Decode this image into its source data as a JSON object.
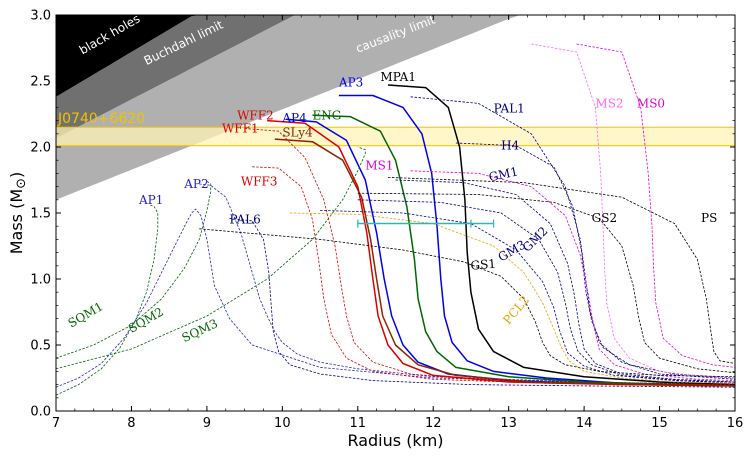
{
  "chart_data": {
    "type": "line",
    "title": "",
    "xlabel": "Radius (km)",
    "ylabel": "Mass (M",
    "ylabel_symbol": "⊙",
    "ylabel_close": ")",
    "xlim": [
      7,
      16
    ],
    "ylim": [
      0.0,
      3.0
    ],
    "xticks": [
      "7",
      "8",
      "9",
      "10",
      "11",
      "12",
      "13",
      "14",
      "15",
      "16"
    ],
    "yticks": [
      "0.0",
      "0.5",
      "1.0",
      "1.5",
      "2.0",
      "2.5",
      "3.0"
    ],
    "regions": [
      {
        "name": "black holes",
        "color": "#000000"
      },
      {
        "name": "Buchdahl limit",
        "color": "#707070"
      },
      {
        "name": "causality limit",
        "color": "#b0b0b0"
      }
    ],
    "band": {
      "name": "J0740+6620",
      "mass_range": [
        2.01,
        2.15
      ],
      "color": "#fff3b8",
      "edge": "#f2c200",
      "label_color": "#f2c200"
    },
    "measurement": {
      "mass": 1.42,
      "radius_range": [
        11.0,
        12.8
      ],
      "color": "#22bbbb"
    },
    "series": [
      {
        "name": "AP1",
        "color": "#2222cc",
        "style": "dashed",
        "width": 0.8,
        "label_at": [
          8.1,
          1.57
        ],
        "x": [
          7.0,
          7.3,
          7.6,
          7.9,
          8.2,
          8.4,
          8.6,
          8.75,
          8.8,
          8.85,
          8.92,
          9.0,
          9.1,
          9.3,
          9.6,
          10.5,
          12,
          14,
          16
        ],
        "y": [
          0.18,
          0.25,
          0.36,
          0.55,
          0.82,
          1.05,
          1.28,
          1.45,
          1.5,
          1.53,
          1.48,
          1.3,
          0.95,
          0.7,
          0.5,
          0.33,
          0.25,
          0.22,
          0.2
        ]
      },
      {
        "name": "AP2",
        "color": "#2222cc",
        "style": "dashed",
        "width": 0.8,
        "label_at": [
          8.7,
          1.69
        ],
        "x": [
          8.9,
          9.05,
          9.25,
          9.45,
          9.6,
          9.7,
          9.8,
          9.9,
          10.0,
          10.2,
          10.5,
          11,
          12,
          14,
          16
        ],
        "y": [
          1.72,
          1.71,
          1.62,
          1.35,
          1.05,
          0.85,
          0.72,
          0.6,
          0.52,
          0.43,
          0.37,
          0.32,
          0.26,
          0.22,
          0.2
        ]
      },
      {
        "name": "AP3",
        "color": "#0000ee",
        "style": "solid",
        "width": 1.5,
        "label_at": [
          10.75,
          2.46
        ],
        "x": [
          10.75,
          11.2,
          11.6,
          11.85,
          11.98,
          12.05,
          12.1,
          12.15,
          12.25,
          12.45,
          12.8,
          13.5,
          14.5,
          16
        ],
        "y": [
          2.39,
          2.39,
          2.3,
          2.1,
          1.8,
          1.4,
          1.0,
          0.72,
          0.52,
          0.38,
          0.3,
          0.25,
          0.21,
          0.19
        ]
      },
      {
        "name": "AP4",
        "color": "#0000ee",
        "style": "solid",
        "width": 1.5,
        "label_at": [
          10.0,
          2.19
        ],
        "x": [
          10.05,
          10.45,
          10.85,
          11.1,
          11.25,
          11.35,
          11.45,
          11.6,
          11.8,
          12.2,
          13,
          14,
          16
        ],
        "y": [
          2.21,
          2.19,
          2.05,
          1.75,
          1.35,
          1.0,
          0.72,
          0.5,
          0.37,
          0.28,
          0.23,
          0.21,
          0.19
        ]
      },
      {
        "name": "ENG",
        "color": "#006600",
        "style": "solid",
        "width": 1.5,
        "label_at": [
          10.4,
          2.21
        ],
        "x": [
          10.4,
          10.9,
          11.3,
          11.5,
          11.65,
          11.75,
          11.8,
          11.9,
          12.05,
          12.3,
          13,
          14,
          16
        ],
        "y": [
          2.24,
          2.23,
          2.12,
          1.9,
          1.55,
          1.15,
          0.85,
          0.6,
          0.45,
          0.33,
          0.26,
          0.22,
          0.19
        ]
      },
      {
        "name": "MPA1",
        "color": "#000000",
        "style": "solid",
        "width": 1.5,
        "label_at": [
          11.3,
          2.5
        ],
        "x": [
          11.4,
          11.9,
          12.2,
          12.35,
          12.42,
          12.45,
          12.5,
          12.6,
          12.8,
          13.2,
          14,
          15,
          16
        ],
        "y": [
          2.47,
          2.45,
          2.3,
          2.0,
          1.6,
          1.2,
          0.9,
          0.62,
          0.45,
          0.33,
          0.26,
          0.22,
          0.2
        ]
      },
      {
        "name": "WFF2",
        "color": "#dd0000",
        "style": "solid",
        "width": 1.5,
        "label_at": [
          9.4,
          2.21
        ],
        "x": [
          9.8,
          10.3,
          10.75,
          11.0,
          11.12,
          11.2,
          11.27,
          11.4,
          11.6,
          12,
          13,
          14.5,
          16
        ],
        "y": [
          2.2,
          2.18,
          2.0,
          1.7,
          1.35,
          1.0,
          0.72,
          0.5,
          0.36,
          0.27,
          0.22,
          0.2,
          0.19
        ]
      },
      {
        "name": "WFF1",
        "color": "#dd0000",
        "style": "dashed",
        "width": 0.8,
        "label_at": [
          9.2,
          2.11
        ],
        "x": [
          9.5,
          9.95,
          10.3,
          10.55,
          10.7,
          10.78,
          10.85,
          10.95,
          11.2,
          11.7,
          12.7,
          14,
          16
        ],
        "y": [
          2.14,
          2.12,
          1.92,
          1.6,
          1.25,
          0.95,
          0.72,
          0.52,
          0.37,
          0.28,
          0.23,
          0.21,
          0.2
        ]
      },
      {
        "name": "WFF3",
        "color": "#dd0000",
        "style": "dashed",
        "width": 0.8,
        "label_at": [
          9.45,
          1.71
        ],
        "x": [
          9.6,
          9.95,
          10.25,
          10.4,
          10.48,
          10.55,
          10.65,
          10.85,
          11.2,
          12,
          13.5,
          16
        ],
        "y": [
          1.85,
          1.84,
          1.7,
          1.45,
          1.15,
          0.85,
          0.58,
          0.4,
          0.3,
          0.24,
          0.21,
          0.19
        ]
      },
      {
        "name": "SLy4",
        "color": "#8b2500",
        "style": "solid",
        "width": 1.5,
        "label_at": [
          10.0,
          2.08
        ],
        "x": [
          9.9,
          10.4,
          10.8,
          11.05,
          11.17,
          11.25,
          11.33,
          11.5,
          11.8,
          12.3,
          13.3,
          14.8,
          16
        ],
        "y": [
          2.06,
          2.04,
          1.9,
          1.62,
          1.3,
          1.0,
          0.72,
          0.5,
          0.35,
          0.27,
          0.22,
          0.2,
          0.19
        ]
      },
      {
        "name": "PAL1",
        "color": "#00007a",
        "style": "dashed",
        "width": 0.8,
        "label_at": [
          12.8,
          2.26
        ],
        "x": [
          11.7,
          12.6,
          13.3,
          13.75,
          13.95,
          14.02,
          14.08,
          14.2,
          14.5,
          15,
          16
        ],
        "y": [
          2.38,
          2.33,
          2.1,
          1.7,
          1.3,
          1.0,
          0.75,
          0.52,
          0.37,
          0.28,
          0.24
        ]
      },
      {
        "name": "H4",
        "color": "#00007a",
        "style": "dashed",
        "width": 0.8,
        "label_at": [
          12.9,
          1.98
        ],
        "x": [
          12.3,
          13.1,
          13.6,
          13.85,
          13.97,
          14.02,
          14.1,
          14.25,
          14.6,
          15.2,
          16
        ],
        "y": [
          2.03,
          2.01,
          1.85,
          1.55,
          1.2,
          0.92,
          0.68,
          0.48,
          0.35,
          0.28,
          0.25
        ]
      },
      {
        "name": "MS1",
        "color": "#dd00dd",
        "style": "dashed",
        "width": 0.8,
        "label_at": [
          11.1,
          1.83
        ],
        "x": [
          11.7,
          12.6,
          13.3,
          13.75,
          13.95,
          14.05,
          14.12,
          14.2,
          14.4,
          14.8,
          15.5,
          16
        ],
        "y": [
          1.82,
          1.8,
          1.7,
          1.48,
          1.18,
          0.9,
          0.66,
          0.47,
          0.35,
          0.28,
          0.24,
          0.23
        ]
      },
      {
        "name": "MS2",
        "color": "#ff66ff",
        "style": "dashed",
        "width": 0.8,
        "label_at": [
          14.15,
          2.3
        ],
        "x": [
          13.3,
          13.9,
          14.15,
          14.22,
          14.25,
          14.27,
          14.3,
          14.4,
          14.6,
          15,
          15.6,
          16
        ],
        "y": [
          2.78,
          2.72,
          2.3,
          1.8,
          1.4,
          1.1,
          0.82,
          0.55,
          0.4,
          0.3,
          0.26,
          0.25
        ]
      },
      {
        "name": "MS0",
        "color": "#dd00dd",
        "style": "dashed",
        "width": 0.8,
        "label_at": [
          14.7,
          2.3
        ],
        "x": [
          13.9,
          14.5,
          14.75,
          14.85,
          14.9,
          14.92,
          14.95,
          15.05,
          15.3,
          15.7,
          16
        ],
        "y": [
          2.78,
          2.72,
          2.3,
          1.8,
          1.4,
          1.1,
          0.82,
          0.55,
          0.42,
          0.35,
          0.33
        ]
      },
      {
        "name": "GM1",
        "color": "#00007a",
        "style": "dashed",
        "width": 0.8,
        "label_at": [
          12.75,
          1.74
        ],
        "x": [
          11.5,
          12.4,
          13.1,
          13.55,
          13.78,
          13.87,
          13.93,
          14.0,
          14.15,
          14.5,
          15.2,
          16
        ],
        "y": [
          1.75,
          1.73,
          1.64,
          1.42,
          1.12,
          0.88,
          0.66,
          0.47,
          0.36,
          0.28,
          0.24,
          0.22
        ]
      },
      {
        "name": "GM2",
        "color": "#00007a",
        "style": "dashed",
        "width": 0.8,
        "label_at": [
          13.25,
          1.2
        ],
        "x": [
          11.0,
          12.1,
          12.9,
          13.4,
          13.65,
          13.75,
          13.82,
          13.92,
          14.1,
          14.5,
          15.3,
          16
        ],
        "y": [
          1.6,
          1.58,
          1.5,
          1.3,
          1.05,
          0.82,
          0.62,
          0.45,
          0.35,
          0.27,
          0.23,
          0.22
        ]
      },
      {
        "name": "GM3",
        "color": "#00007a",
        "style": "dashed",
        "width": 0.8,
        "label_at": [
          12.9,
          1.13
        ],
        "x": [
          10.5,
          11.6,
          12.5,
          13.1,
          13.45,
          13.6,
          13.68,
          13.78,
          14.0,
          14.4,
          15.2,
          16
        ],
        "y": [
          1.52,
          1.5,
          1.42,
          1.22,
          0.98,
          0.78,
          0.6,
          0.44,
          0.34,
          0.27,
          0.23,
          0.21
        ]
      },
      {
        "name": "PAL6",
        "color": "#00007a",
        "style": "dashed",
        "width": 0.8,
        "label_at": [
          9.3,
          1.42
        ],
        "x": [
          9.3,
          9.6,
          9.75,
          9.82,
          9.85,
          9.88,
          9.95,
          10.1,
          10.5,
          11.2,
          12.5,
          14,
          16
        ],
        "y": [
          1.46,
          1.44,
          1.3,
          1.05,
          0.82,
          0.6,
          0.45,
          0.35,
          0.28,
          0.23,
          0.2,
          0.19,
          0.18
        ]
      },
      {
        "name": "GS1",
        "color": "#000000",
        "style": "dashed",
        "width": 0.8,
        "label_at": [
          12.5,
          1.07
        ],
        "x": [
          8.9,
          10.5,
          11.6,
          12.4,
          12.9,
          13.2,
          13.35,
          13.45,
          13.55,
          13.75,
          14.2,
          15,
          16
        ],
        "y": [
          1.38,
          1.3,
          1.22,
          1.13,
          1.02,
          0.85,
          0.68,
          0.52,
          0.42,
          0.35,
          0.3,
          0.27,
          0.26
        ]
      },
      {
        "name": "GS2",
        "color": "#000000",
        "style": "dashed",
        "width": 0.8,
        "label_at": [
          14.1,
          1.43
        ],
        "x": [
          11.0,
          12.6,
          13.6,
          14.2,
          14.5,
          14.65,
          14.72,
          14.8,
          15.0,
          15.5,
          16
        ],
        "y": [
          1.65,
          1.64,
          1.58,
          1.46,
          1.25,
          0.95,
          0.72,
          0.52,
          0.4,
          0.32,
          0.29
        ]
      },
      {
        "name": "PS",
        "color": "#000000",
        "style": "dashed",
        "width": 0.8,
        "label_at": [
          15.55,
          1.43
        ],
        "x": [
          11.4,
          13.2,
          14.5,
          15.2,
          15.5,
          15.62,
          15.68,
          15.72,
          15.8,
          16
        ],
        "y": [
          1.77,
          1.73,
          1.62,
          1.42,
          1.15,
          0.85,
          0.6,
          0.45,
          0.38,
          0.36
        ]
      },
      {
        "name": "PCL2",
        "color": "#f0a000",
        "style": "dashed",
        "width": 0.8,
        "label_at": [
          13.0,
          0.65
        ],
        "x": [
          10.1,
          11,
          12.0,
          12.8,
          13.2,
          13.45,
          13.6,
          13.7,
          13.8,
          14.0,
          14.5,
          15.2,
          16
        ],
        "y": [
          1.5,
          1.49,
          1.42,
          1.25,
          1.05,
          0.82,
          0.62,
          0.48,
          0.38,
          0.3,
          0.25,
          0.22,
          0.21
        ]
      },
      {
        "name": "SQM1",
        "color": "#006600",
        "style": "dashed",
        "width": 0.8,
        "label_at": [
          7.2,
          0.63
        ],
        "x": [
          7.0,
          7.3,
          7.6,
          7.85,
          8.05,
          8.2,
          8.3,
          8.35,
          8.35,
          8.3,
          8.25
        ],
        "y": [
          0.12,
          0.2,
          0.32,
          0.48,
          0.68,
          0.9,
          1.15,
          1.38,
          1.5,
          1.55,
          1.56
        ]
      },
      {
        "name": "SQM2",
        "color": "#006600",
        "style": "dashed",
        "width": 0.8,
        "label_at": [
          8.0,
          0.59
        ],
        "x": [
          7.0,
          7.5,
          8.0,
          8.4,
          8.7,
          8.9,
          9.0,
          9.05,
          9.05,
          9.0
        ],
        "y": [
          0.4,
          0.5,
          0.65,
          0.85,
          1.08,
          1.3,
          1.52,
          1.66,
          1.72,
          1.74
        ]
      },
      {
        "name": "SQM3",
        "color": "#006600",
        "style": "dashed",
        "width": 0.8,
        "label_at": [
          8.7,
          0.52
        ],
        "x": [
          7.0,
          8.0,
          9.0,
          9.8,
          10.4,
          10.8,
          11.0,
          11.1,
          11.1,
          11.0
        ],
        "y": [
          0.32,
          0.47,
          0.72,
          1.0,
          1.3,
          1.6,
          1.82,
          1.95,
          1.98,
          2.0
        ]
      }
    ]
  }
}
